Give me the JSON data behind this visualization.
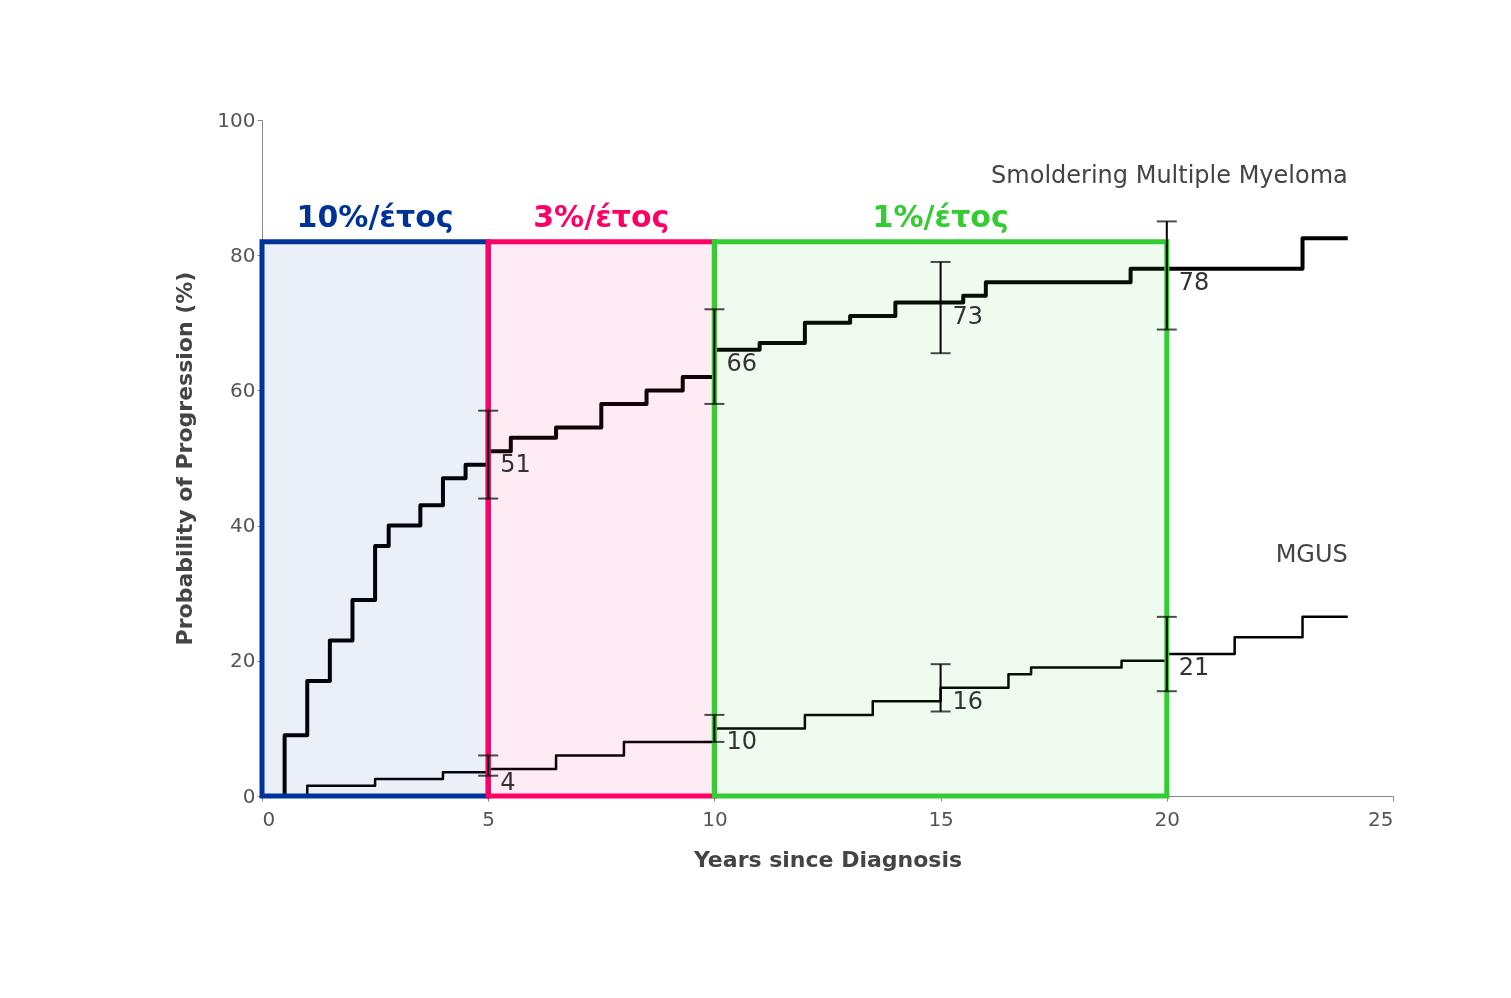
{
  "chart_data": {
    "type": "step",
    "xlabel": "Years since Diagnosis",
    "ylabel": "Probability of Progression (%)",
    "xlim": [
      0,
      25
    ],
    "xticks": [
      0,
      5,
      10,
      15,
      20,
      25
    ],
    "ylim": [
      0,
      100
    ],
    "yticks": [
      0,
      20,
      40,
      60,
      80,
      100
    ],
    "grid": false,
    "series": [
      {
        "name": "Smoldering Multiple Myeloma",
        "color": "#000000",
        "x": [
          0,
          0.5,
          1,
          1.5,
          2,
          2.5,
          2.8,
          3.5,
          4,
          4.5,
          5,
          5.5,
          6.5,
          7.5,
          8.5,
          9.3,
          10,
          11,
          12,
          13,
          14,
          15,
          15.5,
          16,
          19.2,
          20,
          23,
          24
        ],
        "values": [
          0,
          9,
          17,
          23,
          29,
          37,
          40,
          43,
          47,
          49,
          51,
          53,
          54.5,
          58,
          60,
          62,
          66,
          67,
          70,
          71,
          73,
          73,
          74,
          76,
          78,
          78,
          82.5,
          82.5
        ],
        "errors": [
          null,
          null,
          null,
          null,
          null,
          null,
          null,
          null,
          null,
          null,
          [
            44,
            57
          ],
          null,
          null,
          null,
          null,
          null,
          [
            58,
            72
          ],
          null,
          null,
          null,
          null,
          [
            65.5,
            79
          ],
          null,
          null,
          null,
          [
            69,
            85
          ],
          null,
          null
        ],
        "value_labels": [
          null,
          null,
          null,
          null,
          null,
          null,
          null,
          null,
          null,
          null,
          "51",
          null,
          null,
          null,
          null,
          null,
          "66",
          null,
          null,
          null,
          null,
          "73",
          null,
          null,
          null,
          "78",
          null,
          null
        ]
      },
      {
        "name": "MGUS",
        "color": "#000000",
        "x": [
          0,
          1,
          2.5,
          4,
          5,
          6.5,
          8,
          10,
          12,
          13.5,
          15,
          16.5,
          17,
          19,
          20,
          21.5,
          23,
          24
        ],
        "values": [
          0,
          1.5,
          2.5,
          3.5,
          4,
          6,
          8,
          10,
          12,
          14,
          16,
          18,
          19,
          20,
          21,
          23.5,
          26.5,
          26.5
        ],
        "errors": [
          null,
          null,
          null,
          null,
          [
            3,
            6
          ],
          null,
          null,
          [
            8,
            12
          ],
          null,
          null,
          [
            12.5,
            19.5
          ],
          null,
          null,
          null,
          [
            15.5,
            26.5
          ],
          null,
          null,
          null
        ],
        "value_labels": [
          null,
          null,
          null,
          null,
          "4",
          null,
          null,
          "10",
          null,
          null,
          "16",
          null,
          null,
          null,
          "21",
          null,
          null,
          null
        ]
      }
    ],
    "bands": [
      {
        "axis": "x",
        "from": 0,
        "to": 5,
        "label": "10%/έτος",
        "color": "#003399"
      },
      {
        "axis": "x",
        "from": 5,
        "to": 10,
        "label": "3%/έτος",
        "color": "#ff0066"
      },
      {
        "axis": "x",
        "from": 10,
        "to": 20,
        "label": "1%/έτος",
        "color": "#33cc33"
      }
    ]
  }
}
